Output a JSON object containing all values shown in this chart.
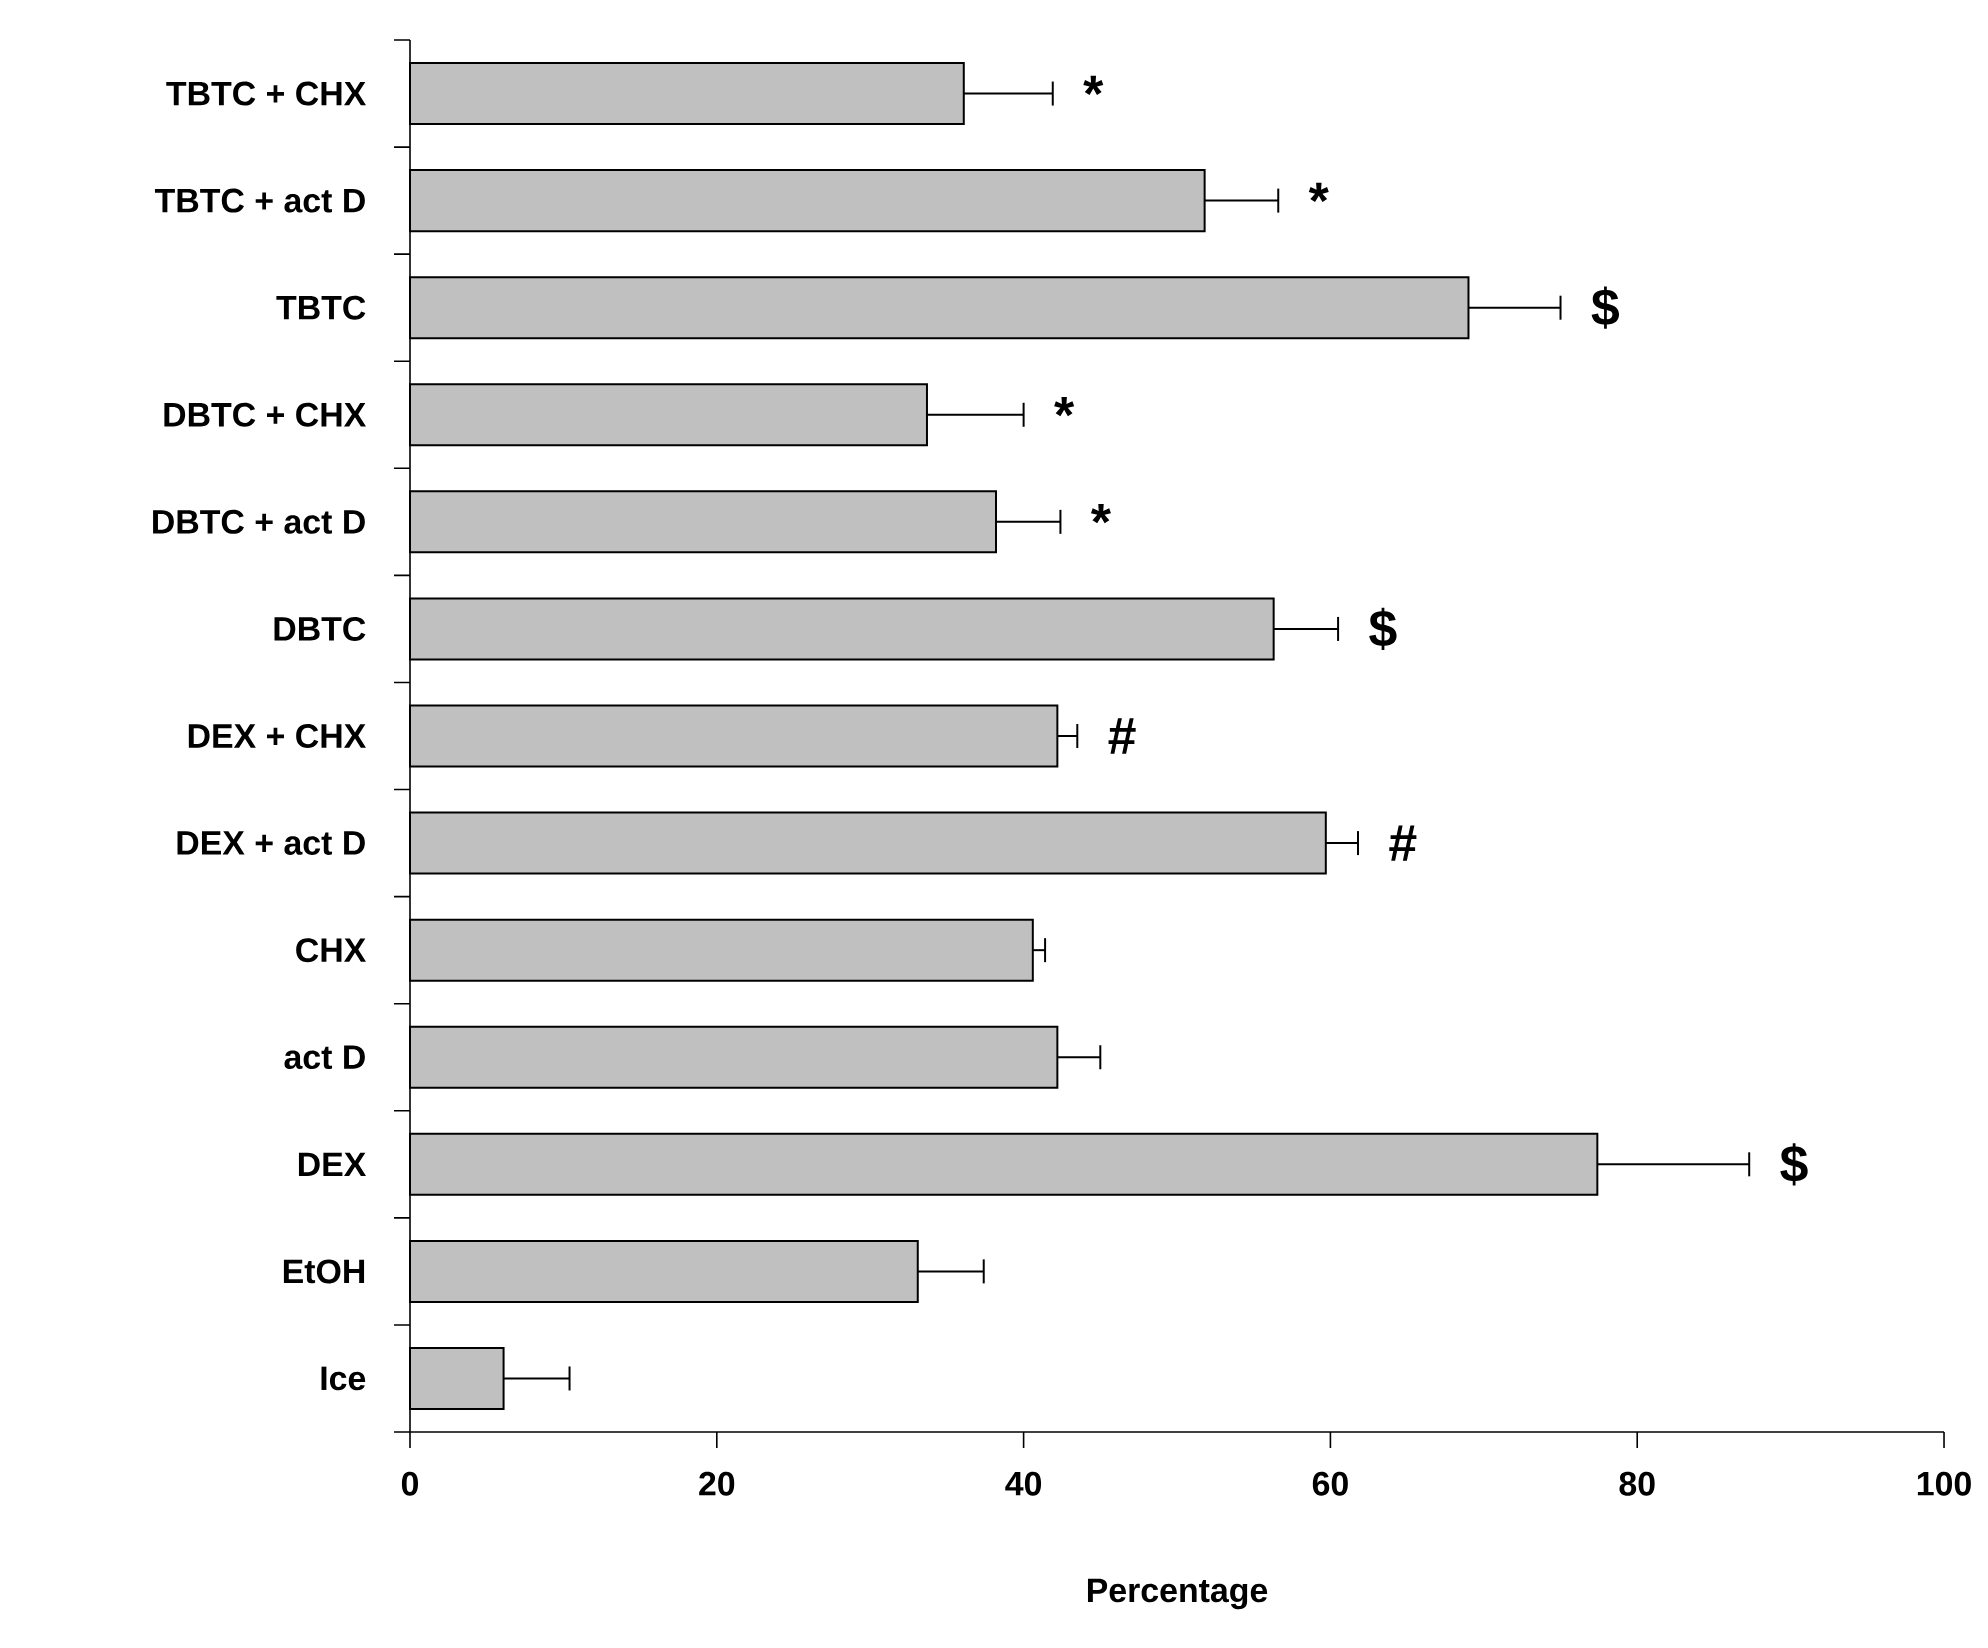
{
  "chart_data": {
    "type": "bar",
    "orientation": "horizontal",
    "xlabel": "Percentage",
    "categories": [
      "TBTC + CHX",
      "TBTC + act D",
      "TBTC",
      "DBTC + CHX",
      "DBTC + act D",
      "DBTC",
      "DEX + CHX",
      "DEX + act D",
      "CHX",
      "act D",
      "DEX",
      "EtOH",
      "Ice"
    ],
    "values": [
      36.1,
      51.8,
      69.0,
      33.7,
      38.2,
      56.3,
      42.2,
      59.7,
      40.6,
      42.2,
      77.4,
      33.1,
      6.1
    ],
    "errors": [
      [
        36.1,
        41.9
      ],
      [
        51.8,
        56.6
      ],
      [
        69.0,
        75.0
      ],
      [
        33.7,
        40.0
      ],
      [
        38.2,
        42.4
      ],
      [
        56.3,
        60.5
      ],
      [
        42.2,
        43.5
      ],
      [
        59.7,
        61.8
      ],
      [
        40.6,
        41.4
      ],
      [
        42.2,
        45.0
      ],
      [
        77.4,
        87.3
      ],
      [
        33.1,
        37.4
      ],
      [
        6.1,
        10.4
      ]
    ],
    "color": "#c0c0c0",
    "xlim": [
      0,
      100
    ],
    "xticks": [
      0,
      20,
      40,
      60,
      80,
      100
    ],
    "grid": false,
    "annotations": [
      {
        "text": "*",
        "x": 41.9,
        "y": "TBTC + CHX"
      },
      {
        "text": "*",
        "x": 56.6,
        "y": "TBTC + act D"
      },
      {
        "text": "$",
        "x": 75.0,
        "y": "TBTC"
      },
      {
        "text": "*",
        "x": 40.0,
        "y": "DBTC + CHX"
      },
      {
        "text": "*",
        "x": 42.4,
        "y": "DBTC + act D"
      },
      {
        "text": "$",
        "x": 60.5,
        "y": "DBTC"
      },
      {
        "text": "#",
        "x": 43.5,
        "y": "DEX + CHX"
      },
      {
        "text": "#",
        "x": 61.8,
        "y": "DEX + act D"
      },
      {
        "text": "$",
        "x": 87.3,
        "y": "DEX"
      }
    ]
  }
}
